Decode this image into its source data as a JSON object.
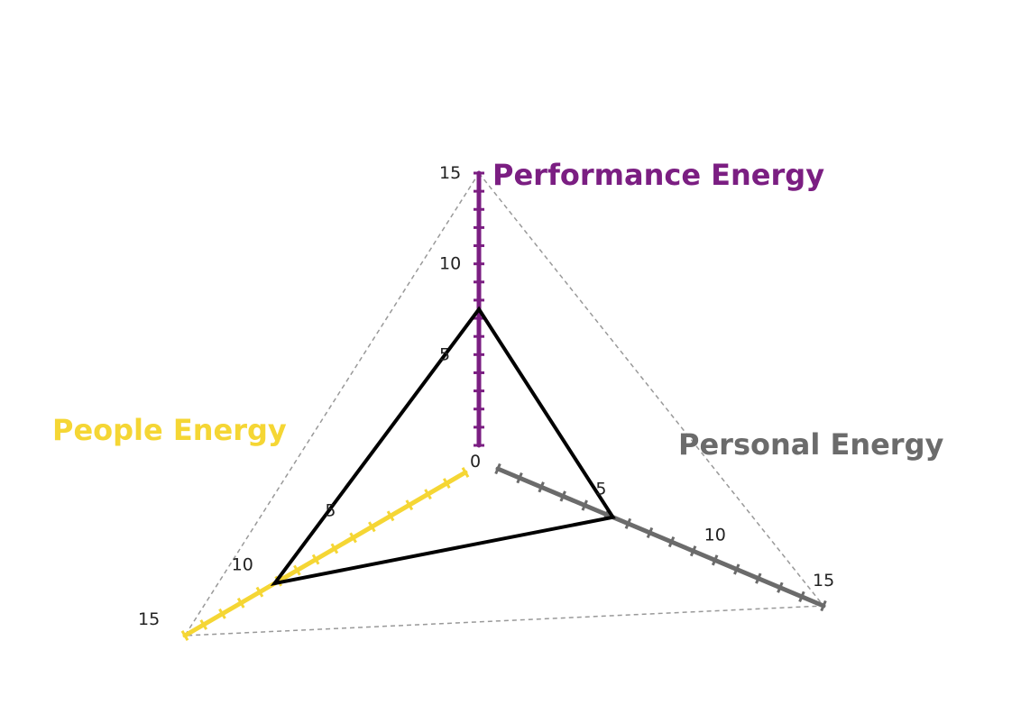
{
  "chart_data": {
    "type": "radar",
    "axes": [
      {
        "key": "performance",
        "label": "Performance Energy",
        "color": "#7b1e82"
      },
      {
        "key": "personal",
        "label": "Personal Energy",
        "color": "#6b6b6b"
      },
      {
        "key": "people",
        "label": "People Energy",
        "color": "#f5d634"
      }
    ],
    "range": [
      0,
      15
    ],
    "tick_labels": [
      "0",
      "5",
      "10",
      "15"
    ],
    "series": [
      {
        "values": {
          "performance": 7.5,
          "personal": 5.3,
          "people": 10.2
        },
        "color": "#000000"
      }
    ],
    "grid_outline": "dashed",
    "legend": "none"
  }
}
